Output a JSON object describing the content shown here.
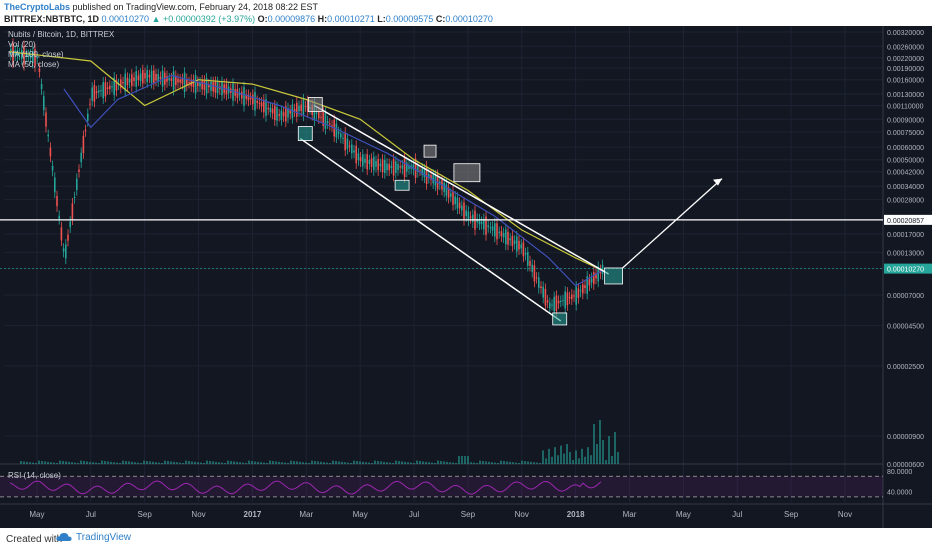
{
  "header": {
    "publisher": "TheCryptoLabs",
    "published_text": " published on TradingView.com, February 24, 2018 08:22 EST",
    "symbol": "BITTREX:NBTBTC, 1D",
    "last": "0.00010270",
    "change": "▲ +0.00000392 (+3.97%)",
    "o_label": "O:",
    "o": "0.00009876",
    "h_label": "H:",
    "h": "0.00010271",
    "l_label": "L:",
    "l": "0.00009575",
    "c_label": "C:",
    "c": "0.00010270"
  },
  "legend": {
    "title": "Nubits / Bitcoin, 1D, BITTREX",
    "vol": "Vol (20)",
    "ma100": "MA (100, close)",
    "ma50": "MA (50, close)"
  },
  "rsi_label": "RSI (14, close)",
  "footer": {
    "created": "Created with",
    "brand": "TradingView"
  },
  "colors": {
    "background": "#131722",
    "candle_up": "#26a69a",
    "candle_down": "#ef5350",
    "ma100": "#c8c83c",
    "ma50": "#3e4fb8",
    "rsi": "#9c27b0",
    "channel": "#ffffff",
    "last_price_box": "#26a69a"
  },
  "chart_data": {
    "type": "line",
    "title": "Nubits / Bitcoin, 1D, BITTREX",
    "x_tick_labels": [
      "May",
      "Jul",
      "Sep",
      "Nov",
      "2017",
      "Mar",
      "May",
      "Jul",
      "Sep",
      "Nov",
      "2018",
      "Mar",
      "May",
      "Jul",
      "Sep",
      "Nov"
    ],
    "y_scale": "log",
    "y_tick_labels": [
      "0.00320000",
      "0.00260000",
      "0.00220000",
      "0.00190000",
      "0.00160000",
      "0.00130000",
      "0.00110000",
      "0.00090000",
      "0.00075000",
      "0.00060000",
      "0.00050000",
      "0.00042000",
      "0.00034000",
      "0.00028000",
      "0.00020857",
      "0.00017000",
      "0.00013000",
      "0.00010270",
      "0.00007000",
      "0.00004500",
      "0.00002500",
      "0.00000900",
      "0.00000600"
    ],
    "resistance_level": "0.00020857",
    "last_price": "0.00010270",
    "series": [
      {
        "name": "close",
        "x": [
          "2016-04",
          "2016-05",
          "2016-06",
          "2016-07",
          "2016-08",
          "2016-09",
          "2016-10",
          "2016-11",
          "2016-12",
          "2017-01",
          "2017-02",
          "2017-03",
          "2017-04",
          "2017-05",
          "2017-06",
          "2017-07",
          "2017-08",
          "2017-09",
          "2017-10",
          "2017-11",
          "2017-12",
          "2018-01",
          "2018-02"
        ],
        "values": [
          0.0024,
          0.0022,
          0.00012,
          0.0013,
          0.0015,
          0.0017,
          0.0016,
          0.0015,
          0.0014,
          0.0012,
          0.00095,
          0.0011,
          0.0008,
          0.0005,
          0.00045,
          0.00045,
          0.00035,
          0.00022,
          0.00018,
          0.00014,
          6e-05,
          7e-05,
          0.0001027
        ]
      },
      {
        "name": "MA (100, close)",
        "x": [
          "2016-04",
          "2016-07",
          "2016-09",
          "2016-11",
          "2017-01",
          "2017-03",
          "2017-05",
          "2017-07",
          "2017-09",
          "2017-11",
          "2018-01",
          "2018-02"
        ],
        "values": [
          0.0024,
          0.0021,
          0.0011,
          0.0016,
          0.0015,
          0.0012,
          0.0009,
          0.0005,
          0.00032,
          0.00018,
          0.00012,
          0.0001
        ]
      },
      {
        "name": "MA (50, close)",
        "x": [
          "2016-06",
          "2016-07",
          "2016-08",
          "2016-10",
          "2016-12",
          "2017-02",
          "2017-04",
          "2017-06",
          "2017-08",
          "2017-10",
          "2017-12",
          "2018-01",
          "2018-02"
        ],
        "values": [
          0.0014,
          0.0008,
          0.0012,
          0.0017,
          0.0014,
          0.0011,
          0.0008,
          0.00055,
          0.00035,
          0.00022,
          0.00012,
          8e-05,
          0.0001
        ]
      }
    ],
    "rsi": {
      "label": "RSI (14, close)",
      "levels": [
        70,
        30
      ],
      "tick_labels": [
        "80.0000",
        "40.0000"
      ]
    },
    "annotations": [
      "descending channel",
      "arrow projection up-right"
    ],
    "grid": true
  }
}
